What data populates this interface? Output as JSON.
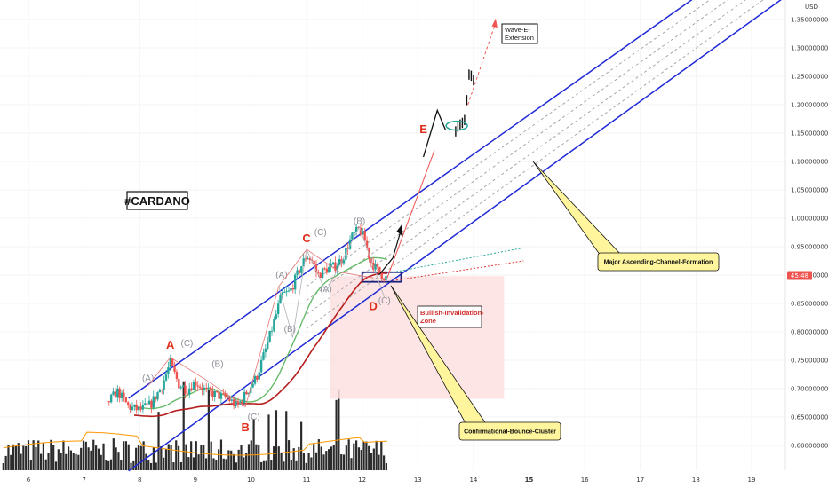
{
  "chart_data": {
    "type": "candlestick",
    "symbol_label": "#CARDANO",
    "currency": "USD",
    "y_axis": {
      "min": 0.58,
      "max": 1.39,
      "ticks": [
        0.6,
        0.65,
        0.7,
        0.75,
        0.8,
        0.85,
        0.9,
        0.95,
        1.0,
        1.05,
        1.1,
        1.15,
        1.2,
        1.25,
        1.3,
        1.35
      ],
      "tick_labels": [
        "0.60000000",
        "0.65000000",
        "0.70000000",
        "0.75000000",
        "0.80000000",
        "0.85000000",
        "0.90000000",
        "0.95000000",
        "1.00000000",
        "1.05000000",
        "1.10000000",
        "1.15000000",
        "1.20000000",
        "1.25000000",
        "1.30000000",
        "1.35000000"
      ],
      "current_price_label": "45:48",
      "current_price": 0.8992
    },
    "x_axis": {
      "min": 5.5,
      "max": 19.6,
      "ticks": [
        6,
        7,
        8,
        9,
        10,
        11,
        12,
        13,
        14,
        15,
        16,
        17,
        18,
        19
      ],
      "tick_labels": [
        "6",
        "7",
        "8",
        "9",
        "10",
        "11",
        "12",
        "13",
        "14",
        "15",
        "16",
        "17",
        "18",
        "19"
      ],
      "bold_ticks": [
        "15"
      ]
    },
    "price_path": [
      [
        7.45,
        0.678
      ],
      [
        7.6,
        0.695
      ],
      [
        7.8,
        0.668
      ],
      [
        8.0,
        0.662
      ],
      [
        8.2,
        0.672
      ],
      [
        8.4,
        0.705
      ],
      [
        8.55,
        0.745
      ],
      [
        8.7,
        0.708
      ],
      [
        8.85,
        0.698
      ],
      [
        9.0,
        0.712
      ],
      [
        9.2,
        0.695
      ],
      [
        9.4,
        0.688
      ],
      [
        9.6,
        0.682
      ],
      [
        9.75,
        0.668
      ],
      [
        9.9,
        0.69
      ],
      [
        10.1,
        0.72
      ],
      [
        10.3,
        0.78
      ],
      [
        10.45,
        0.83
      ],
      [
        10.55,
        0.865
      ],
      [
        10.7,
        0.87
      ],
      [
        10.85,
        0.905
      ],
      [
        11.0,
        0.935
      ],
      [
        11.1,
        0.925
      ],
      [
        11.2,
        0.9
      ],
      [
        11.35,
        0.91
      ],
      [
        11.5,
        0.915
      ],
      [
        11.65,
        0.93
      ],
      [
        11.8,
        0.965
      ],
      [
        11.95,
        0.982
      ],
      [
        12.05,
        0.96
      ],
      [
        12.15,
        0.925
      ],
      [
        12.3,
        0.905
      ],
      [
        12.42,
        0.895
      ],
      [
        12.45,
        0.898
      ]
    ],
    "extension_candles": [
      [
        13.68,
        1.15
      ],
      [
        13.72,
        1.158
      ],
      [
        13.76,
        1.162
      ],
      [
        13.8,
        1.165
      ],
      [
        13.84,
        1.17
      ],
      [
        13.88,
        1.205
      ],
      [
        13.92,
        1.25
      ],
      [
        13.96,
        1.248
      ],
      [
        14.0,
        1.24
      ]
    ],
    "volume_note": "volume histogram at bottom",
    "channel": {
      "upper": [
        [
          7.8,
          0.683
        ],
        [
          18.0,
          1.39
        ]
      ],
      "lower": [
        [
          7.8,
          0.555
        ],
        [
          19.6,
          1.39
        ]
      ]
    },
    "wave_labels_major": [
      {
        "text": "A",
        "x": 8.55,
        "y": 0.77
      },
      {
        "text": "B",
        "x": 9.9,
        "y": 0.625
      },
      {
        "text": "C",
        "x": 11.0,
        "y": 0.958
      },
      {
        "text": "D",
        "x": 12.2,
        "y": 0.838
      },
      {
        "text": "E",
        "x": 13.1,
        "y": 1.15
      }
    ],
    "wave_labels_minor": [
      {
        "text": "(A)",
        "x": 8.15,
        "y": 0.713
      },
      {
        "text": "(C)",
        "x": 8.85,
        "y": 0.775
      },
      {
        "text": "(B)",
        "x": 9.4,
        "y": 0.738
      },
      {
        "text": "(C)",
        "x": 10.05,
        "y": 0.645
      },
      {
        "text": "(A)",
        "x": 10.55,
        "y": 0.895
      },
      {
        "text": "(C)",
        "x": 11.25,
        "y": 0.97
      },
      {
        "text": "(B)",
        "x": 10.7,
        "y": 0.8
      },
      {
        "text": "(A)",
        "x": 11.35,
        "y": 0.87
      },
      {
        "text": "(B)",
        "x": 11.95,
        "y": 0.99
      },
      {
        "text": "(C)",
        "x": 12.4,
        "y": 0.85
      }
    ],
    "annotations": {
      "major_channel": "Major Ascending-Channel-Formation",
      "bounce_cluster": "Confirmational-Bounce-Cluster",
      "invalidation": [
        "Bullish-Invalidation-",
        "Zone"
      ],
      "extension": [
        "Wave-E-",
        "Extension"
      ]
    },
    "invalidation_zone": {
      "x1": 11.42,
      "x2": 14.55,
      "y1": 0.682,
      "y2": 0.898
    },
    "colors": {
      "channel": "#1f2ad6",
      "up": "#26a69a",
      "down": "#ef5350",
      "ma_red": "#b71c1c",
      "ma_green": "#66bb6a",
      "ma_orange": "#ff9800",
      "zone": "#fde0e0",
      "label_red": "#e0301e",
      "callout": "#fff59d"
    }
  }
}
